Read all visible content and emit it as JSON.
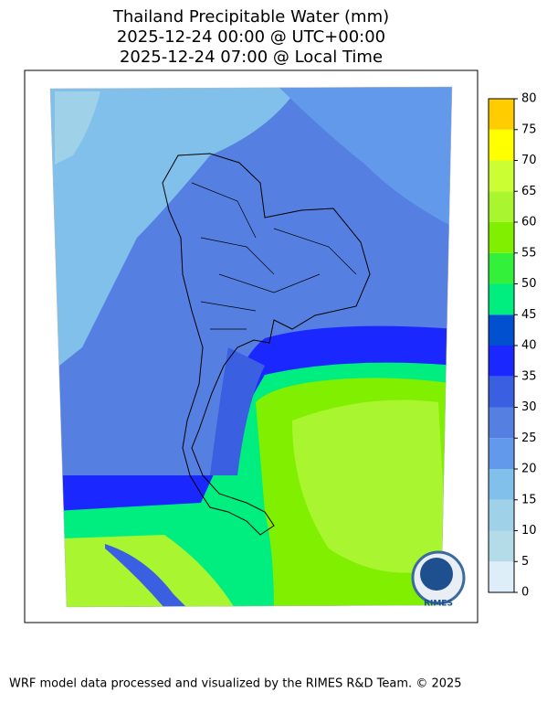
{
  "title": [
    "Thailand Precipitable Water (mm)",
    "2025-12-24 00:00 @ UTC+00:00",
    "2025-12-24 07:00 @ Local Time"
  ],
  "colorbar": {
    "ticks": [
      0,
      5,
      10,
      15,
      20,
      25,
      30,
      35,
      40,
      45,
      50,
      55,
      60,
      65,
      70,
      75,
      80
    ],
    "colors": [
      "#deeef8",
      "#b4dce8",
      "#9fd1e8",
      "#80c0ea",
      "#6399ea",
      "#5580e2",
      "#3a5fe0",
      "#1a28ff",
      "#0050d0",
      "#00ee80",
      "#33f03a",
      "#80f000",
      "#a8f530",
      "#ccff33",
      "#ffff00",
      "#ffcc00"
    ]
  },
  "logo": "RIMES",
  "footer": "WRF model data processed and visualized by the RIMES R&D Team. © 2025"
}
